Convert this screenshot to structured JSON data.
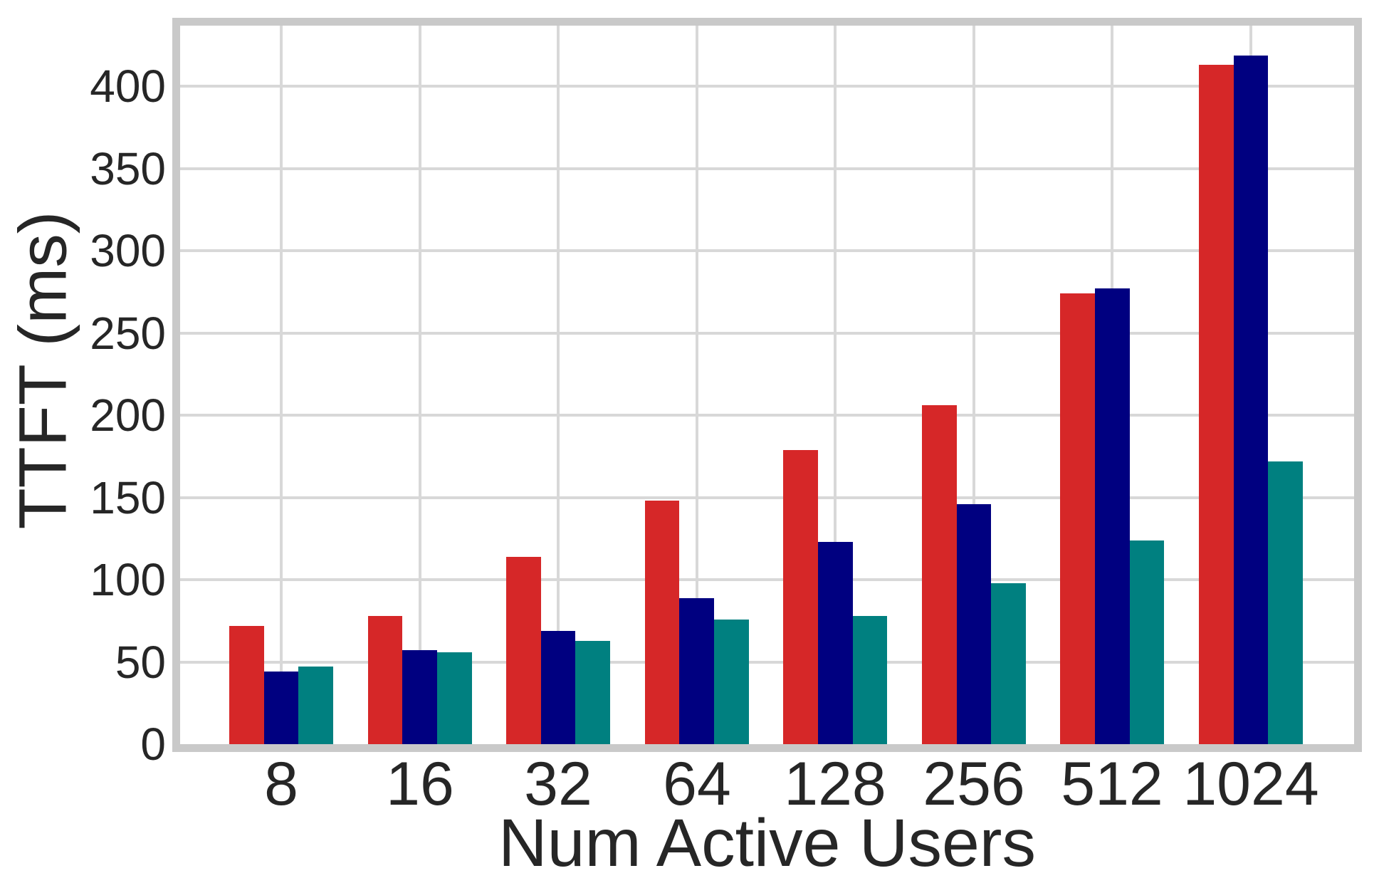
{
  "chart_data": {
    "type": "bar",
    "title": "",
    "xlabel": "Num Active Users",
    "ylabel": "TTFT (ms)",
    "categories": [
      "8",
      "16",
      "32",
      "64",
      "128",
      "256",
      "512",
      "1024"
    ],
    "series": [
      {
        "name": "red",
        "color": "#d62728",
        "values": [
          72,
          78,
          114,
          148,
          179,
          206,
          274,
          413
        ]
      },
      {
        "name": "navy",
        "color": "#000080",
        "values": [
          44,
          57,
          69,
          89,
          123,
          146,
          277,
          419
        ]
      },
      {
        "name": "teal",
        "color": "#008080",
        "values": [
          47,
          56,
          63,
          76,
          78,
          98,
          124,
          172
        ]
      }
    ],
    "yticks": [
      0,
      50,
      100,
      150,
      200,
      250,
      300,
      350,
      400
    ],
    "ylim": [
      0,
      437
    ],
    "grid": "both",
    "legend": "none",
    "legend_position": null
  },
  "style": {
    "background": "#ffffff",
    "grid_color": "#d8d8d8",
    "spine_color": "#c9c9c9",
    "text_color": "#262626"
  }
}
